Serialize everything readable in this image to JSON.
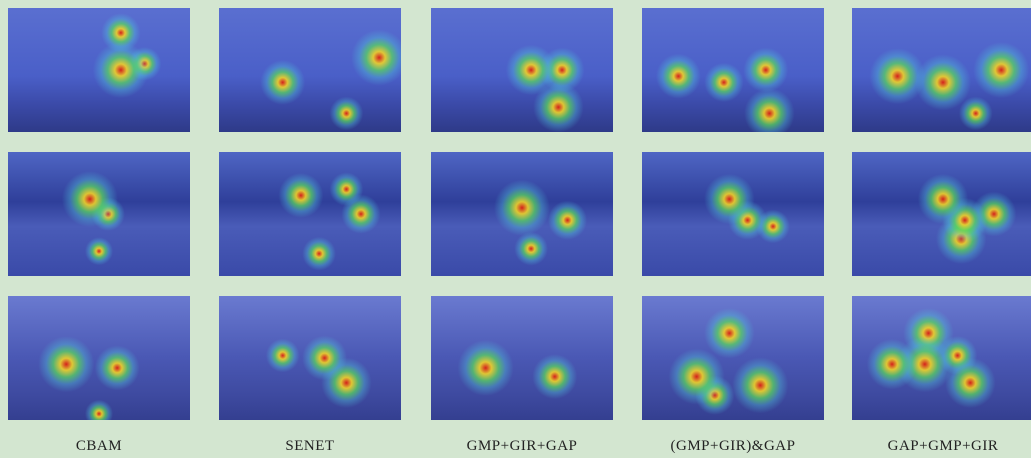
{
  "columns": [
    "CBAM",
    "SENET",
    "GMP+GIR+GAP",
    "(GMP+GIR)&GAP",
    "GAP+GMP+GIR"
  ]
}
